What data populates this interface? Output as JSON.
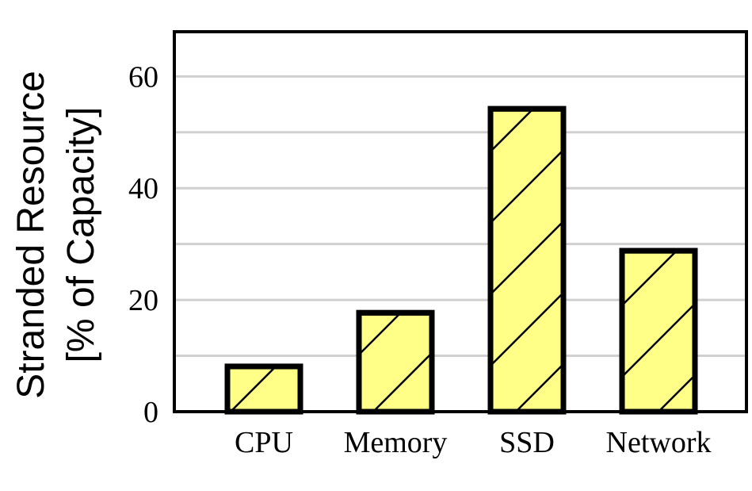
{
  "chart_data": {
    "type": "bar",
    "ylabel": [
      "Stranded Resource",
      "[% of Capacity]"
    ],
    "categories": [
      "CPU",
      "Memory",
      "SSD",
      "Network"
    ],
    "values": [
      8.1,
      17.7,
      54.2,
      28.8
    ],
    "color": "#ffff88",
    "ylim": [
      0,
      68
    ],
    "yticks": [
      0,
      20,
      40,
      60
    ],
    "minor_yticks": [
      10,
      30,
      50
    ],
    "grid": true
  }
}
